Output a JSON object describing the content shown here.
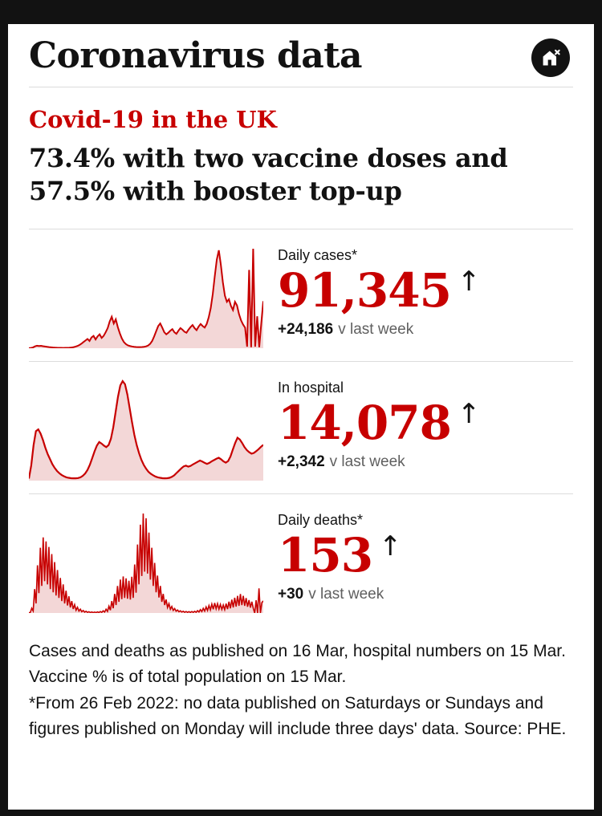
{
  "header": {
    "title": "Coronavirus data"
  },
  "icons": {
    "home": "home-with-x-icon",
    "trend_up_arrow": "↑"
  },
  "intro": {
    "kicker": "Covid-19 in the UK",
    "headline": "73.4% with two vaccine doses and 57.5% with booster top-up"
  },
  "stats": [
    {
      "label": "Daily cases*",
      "value": "91,345",
      "change": "+24,186",
      "change_suffix": "v last week",
      "trend": "up"
    },
    {
      "label": "In hospital",
      "value": "14,078",
      "change": "+2,342",
      "change_suffix": "v last week",
      "trend": "up"
    },
    {
      "label": "Daily deaths*",
      "value": "153",
      "change": "+30",
      "change_suffix": "v last week",
      "trend": "up"
    }
  ],
  "footnote": {
    "line1": "Cases and deaths as published on 16 Mar, hospital numbers on 15 Mar. Vaccine % is of total population on 15 Mar.",
    "line2": "*From 26 Feb 2022: no data published on Saturdays or Sundays and figures published on Monday will include three days' data. Source: PHE."
  },
  "colors": {
    "accent_red": "#c70000",
    "chart_fill": "#f3d7d7",
    "text_dark": "#121212",
    "muted_gray": "#5f5f5f",
    "frame_black": "#121212",
    "divider_gray": "#dcdcdc"
  },
  "chart_data": [
    {
      "type": "area",
      "name": "Daily cases (thousands), Mar 2020 - Mar 2022",
      "unit": "thousands of cases per day",
      "stroke_width": 2,
      "values": [
        0.2,
        0.6,
        1.5,
        3.6,
        4.9,
        4.3,
        4.7,
        3.9,
        3.3,
        2.7,
        2.2,
        1.8,
        1.4,
        1.1,
        0.9,
        0.8,
        0.7,
        0.6,
        0.7,
        0.8,
        1.0,
        1.4,
        2.0,
        3.0,
        4.3,
        6.2,
        8.8,
        12,
        15,
        18,
        14,
        21,
        24,
        17,
        23,
        27,
        20,
        24,
        31,
        39,
        52,
        61,
        48,
        56,
        41,
        29,
        19,
        12,
        8,
        5.5,
        4.3,
        3.4,
        2.8,
        2.3,
        2.1,
        2.2,
        2.4,
        2.8,
        3.6,
        5.2,
        8.5,
        14,
        23,
        33,
        43,
        48,
        40,
        31,
        27,
        30,
        34,
        37,
        31,
        28,
        34,
        39,
        36,
        32,
        30,
        36,
        41,
        45,
        39,
        35,
        42,
        47,
        43,
        40,
        47,
        60,
        78,
        105,
        140,
        172,
        190,
        162,
        128,
        102,
        90,
        95,
        82,
        74,
        90,
        83,
        66,
        54,
        46,
        40,
        3,
        152,
        2,
        193,
        3,
        62,
        2,
        48,
        91.3
      ]
    },
    {
      "type": "area",
      "name": "Patients in hospital (thousands), Mar 2020 - Mar 2022",
      "unit": "thousands of patients",
      "stroke_width": 2.2,
      "values": [
        0.8,
        6,
        14,
        19.5,
        20.2,
        18.5,
        16,
        13,
        10.5,
        8.5,
        6.5,
        5,
        3.8,
        2.9,
        2.2,
        1.7,
        1.3,
        1.1,
        0.95,
        0.9,
        0.9,
        1.0,
        1.3,
        1.9,
        2.8,
        4.2,
        6.2,
        8.8,
        11.5,
        13.8,
        15.2,
        14.6,
        13.8,
        13.2,
        14,
        16.5,
        21,
        27,
        33,
        37.5,
        39.2,
        38,
        34,
        28.5,
        23,
        18,
        14,
        10.8,
        8.2,
        6.2,
        4.7,
        3.5,
        2.7,
        2.1,
        1.6,
        1.3,
        1.1,
        0.95,
        0.9,
        0.95,
        1.1,
        1.5,
        2.1,
        3,
        3.9,
        4.8,
        5.6,
        5.9,
        5.5,
        5.8,
        6.4,
        6.9,
        7.4,
        7.9,
        7.5,
        7.0,
        6.6,
        7.0,
        7.6,
        8.1,
        8.6,
        9.0,
        8.4,
        7.6,
        7.1,
        7.7,
        9.5,
        12.2,
        14.8,
        16.9,
        16.2,
        14.8,
        13.2,
        12,
        11.2,
        10.6,
        10.9,
        11.6,
        12.4,
        13.3,
        14.1
      ]
    },
    {
      "type": "area",
      "name": "Daily deaths, Mar 2020 - Mar 2022",
      "unit": "deaths per day",
      "stroke_width": 1.6,
      "values": [
        2,
        8,
        60,
        25,
        300,
        120,
        600,
        250,
        820,
        340,
        950,
        400,
        900,
        360,
        830,
        300,
        740,
        260,
        640,
        220,
        540,
        190,
        440,
        150,
        360,
        120,
        280,
        95,
        210,
        70,
        150,
        50,
        105,
        35,
        72,
        24,
        48,
        16,
        32,
        11,
        22,
        8,
        16,
        6,
        13,
        5,
        12,
        5,
        14,
        6,
        18,
        8,
        28,
        12,
        48,
        20,
        85,
        35,
        150,
        60,
        240,
        100,
        340,
        140,
        420,
        175,
        460,
        190,
        435,
        180,
        405,
        170,
        455,
        190,
        610,
        255,
        860,
        360,
        1110,
        465,
        1250,
        520,
        1190,
        495,
        1010,
        420,
        820,
        340,
        630,
        260,
        470,
        195,
        340,
        140,
        240,
        100,
        170,
        70,
        118,
        48,
        82,
        33,
        56,
        23,
        38,
        16,
        28,
        12,
        22,
        9,
        19,
        8,
        17,
        7,
        18,
        8,
        22,
        9,
        30,
        13,
        42,
        18,
        58,
        24,
        76,
        32,
        94,
        39,
        112,
        47,
        126,
        53,
        118,
        49,
        108,
        45,
        100,
        42,
        118,
        49,
        142,
        59,
        168,
        70,
        192,
        80,
        215,
        90,
        238,
        99,
        215,
        90,
        188,
        78,
        162,
        68,
        142,
        59,
        0,
        160,
        0,
        310,
        0,
        130,
        153
      ]
    }
  ]
}
